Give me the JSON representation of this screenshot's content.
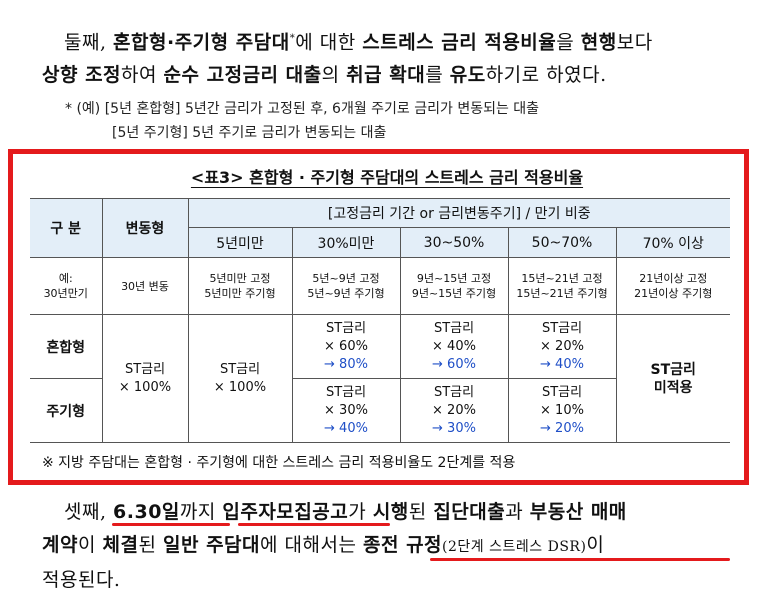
{
  "paragraph1": {
    "t1": "둘째, ",
    "b1": "혼합형·주기형 주담대",
    "sup": "*",
    "t2": "에 대한 ",
    "b2": "스트레스 금리 적용비율",
    "t3": "을 ",
    "b3": "현행",
    "t4": "보다",
    "b4": "상향 조정",
    "t5": "하여 ",
    "b5": "순수 고정금리 대출",
    "t6": "의 ",
    "b6": "취급 확대",
    "t7": "를 ",
    "b7": "유도",
    "t8": "하기로 하였다."
  },
  "notes": {
    "line1": "* (예) [5년 혼합형] 5년간 금리가 고정된 후, 6개월 주기로 금리가 변동되는 대출",
    "line2": "[5년 주기형] 5년 주기로 금리가 변동되는 대출"
  },
  "table": {
    "title": "<표3> 혼합형 · 주기형 주담대의 스트레스 금리 적용비율",
    "header": {
      "category": "구 분",
      "variable": "변동형",
      "group": "[고정금리 기간 or 금리변동주기] / 만기 비중",
      "cols": [
        "5년미만",
        "30%미만",
        "30~50%",
        "50~70%",
        "70% 이상"
      ]
    },
    "example_row": {
      "label_line1": "예:",
      "label_line2": "30년만기",
      "variable": "30년 변동",
      "cells": [
        [
          "5년미만 고정",
          "5년미만 주기형"
        ],
        [
          "5년~9년 고정",
          "5년~9년 주기형"
        ],
        [
          "9년~15년 고정",
          "9년~15년 주기형"
        ],
        [
          "15년~21년 고정",
          "15년~21년 주기형"
        ],
        [
          "21년이상 고정",
          "21년이상 주기형"
        ]
      ]
    },
    "mixed": {
      "label": "혼합형",
      "c30": [
        "ST금리",
        "× 60%",
        "→ 80%"
      ],
      "c30_50": [
        "ST금리",
        "× 40%",
        "→ 60%"
      ],
      "c50_70": [
        "ST금리",
        "× 20%",
        "→ 40%"
      ]
    },
    "periodic": {
      "label": "주기형",
      "c30": [
        "ST금리",
        "× 30%",
        "→ 40%"
      ],
      "c30_50": [
        "ST금리",
        "× 20%",
        "→ 30%"
      ],
      "c50_70": [
        "ST금리",
        "× 10%",
        "→ 20%"
      ]
    },
    "variable_value": [
      "ST금리",
      "× 100%"
    ],
    "under5_value": [
      "ST금리",
      "× 100%"
    ],
    "over70_value": [
      "ST금리",
      "미적용"
    ],
    "footnote": "※ 지방 주담대는 혼합형 · 주기형에 대한 스트레스 금리 적용비율도 2단계를 적용"
  },
  "paragraph3": {
    "t1": "셋째, ",
    "b1": "6.30일",
    "t2": "까지 ",
    "b2": "입주자모집공고",
    "t3": "가 ",
    "b3": "시행",
    "t4": "된 ",
    "b4": "집단대출",
    "t5": "과 ",
    "b5": "부동산 매매",
    "b6": "계약",
    "t6": "이 ",
    "b7": "체결",
    "t7": "된 ",
    "b8": "일반 주담대",
    "t8": "에 대해서는 ",
    "b9": "종전 규정",
    "small": "(2단계 스트레스 DSR)",
    "t9": "이",
    "t10": "적용된다."
  },
  "colors": {
    "frame": "#e41a1c",
    "header_bg": "#e3eef8",
    "arrow_text": "#1f4fc7",
    "underline": "#e41a1c"
  }
}
